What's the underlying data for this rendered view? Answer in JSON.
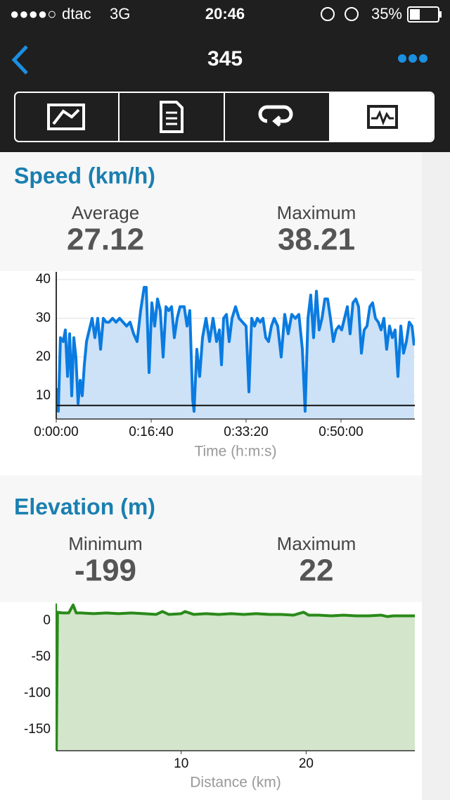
{
  "status_bar": {
    "signal": "●●●●○",
    "carrier": "dtac",
    "network": "3G",
    "time": "20:46",
    "battery": "35%"
  },
  "nav": {
    "title": "345"
  },
  "chart_data": [
    {
      "type": "area",
      "title": "Speed (km/h)",
      "stats": [
        {
          "label": "Average",
          "value": 27.12
        },
        {
          "label": "Maximum",
          "value": 38.21
        }
      ],
      "x_label": "Time (h:m:s)",
      "xlim": [
        0,
        3778
      ],
      "xticks": [
        {
          "value": 0,
          "label": "0:00:00"
        },
        {
          "value": 1000,
          "label": "0:16:40"
        },
        {
          "value": 2000,
          "label": "0:33:20"
        },
        {
          "value": 3000,
          "label": "0:50:00"
        }
      ],
      "ylim": [
        4,
        42
      ],
      "yticks": [
        10,
        20,
        30,
        40
      ],
      "grid": true,
      "reference_line": 7.5,
      "x": [
        0,
        22,
        44,
        74,
        96,
        119,
        141,
        163,
        185,
        207,
        230,
        252,
        274,
        296,
        319,
        348,
        378,
        407,
        437,
        467,
        496,
        526,
        556,
        593,
        630,
        667,
        704,
        741,
        778,
        815,
        852,
        889,
        926,
        948,
        978,
        1007,
        1037,
        1067,
        1096,
        1126,
        1156,
        1185,
        1215,
        1244,
        1274,
        1304,
        1348,
        1378,
        1407,
        1437,
        1452,
        1481,
        1511,
        1541,
        1578,
        1615,
        1652,
        1689,
        1719,
        1741,
        1763,
        1793,
        1822,
        1852,
        1889,
        1926,
        1963,
        2000,
        2030,
        2059,
        2089,
        2119,
        2148,
        2178,
        2207,
        2237,
        2267,
        2296,
        2333,
        2370,
        2407,
        2444,
        2481,
        2519,
        2556,
        2593,
        2622,
        2652,
        2681,
        2711,
        2741,
        2770,
        2800,
        2830,
        2859,
        2889,
        2919,
        2948,
        2978,
        3007,
        3037,
        3067,
        3096,
        3126,
        3156,
        3185,
        3215,
        3244,
        3274,
        3304,
        3333,
        3363,
        3393,
        3422,
        3452,
        3481,
        3511,
        3541,
        3570,
        3600,
        3630,
        3659,
        3689,
        3719,
        3748,
        3770
      ],
      "series": [
        {
          "color": "#0a7be0",
          "fill": "#cde2f7",
          "values": [
            12,
            6,
            25,
            24,
            27,
            15,
            26,
            10,
            25,
            20,
            8,
            14,
            10,
            18,
            24,
            27,
            30,
            25,
            30,
            22,
            30,
            29,
            29,
            30,
            29,
            30,
            29,
            28,
            29,
            26,
            24,
            32,
            38,
            38,
            16,
            34,
            28,
            35,
            32,
            20,
            33,
            32,
            33,
            25,
            30,
            33,
            33,
            28,
            32,
            9,
            6,
            22,
            15,
            25,
            30,
            24,
            30,
            24,
            27,
            18,
            30,
            31,
            24,
            30,
            33,
            30,
            29,
            28,
            11,
            30,
            28,
            30,
            29,
            30,
            25,
            24,
            28,
            30,
            28,
            20,
            31,
            26,
            31,
            30,
            31,
            22,
            6,
            30,
            36,
            25,
            37,
            27,
            30,
            35,
            35,
            30,
            24,
            27,
            28,
            27,
            30,
            33,
            26,
            34,
            35,
            33,
            21,
            27,
            28,
            33,
            34,
            30,
            29,
            27,
            30,
            22,
            28,
            25,
            27,
            15,
            28,
            21,
            24,
            29,
            28,
            23
          ]
        }
      ]
    },
    {
      "type": "area",
      "title": "Elevation (m)",
      "stats": [
        {
          "label": "Minimum",
          "value": -199
        },
        {
          "label": "Maximum",
          "value": 22
        }
      ],
      "x_label": "Distance (km)",
      "xlim": [
        0,
        28.7
      ],
      "xticks": [
        10,
        20
      ],
      "ylim": [
        -179,
        24
      ],
      "yticks": [
        0,
        -50,
        -100,
        -150
      ],
      "grid": true,
      "x": [
        0,
        0.1,
        0.5,
        1.0,
        1.35,
        1.6,
        2,
        3,
        4,
        5,
        6,
        7,
        8,
        8.5,
        9,
        10,
        10.3,
        11,
        12,
        13,
        14,
        15,
        16,
        17,
        18,
        19,
        19.8,
        20.2,
        21,
        22,
        23,
        24,
        25,
        26,
        26.5,
        27,
        28,
        28.7
      ],
      "series": [
        {
          "color": "#2a8a1a",
          "fill": "#d3e6cc",
          "values": [
            -199,
            12,
            11,
            11,
            22,
            11,
            11,
            10,
            11,
            10,
            11,
            10,
            9,
            13,
            9,
            10,
            13,
            9,
            10,
            9,
            10,
            9,
            10,
            9,
            9,
            8,
            12,
            8,
            8,
            7,
            8,
            7,
            7,
            8,
            6,
            7,
            7,
            7
          ]
        }
      ]
    }
  ]
}
